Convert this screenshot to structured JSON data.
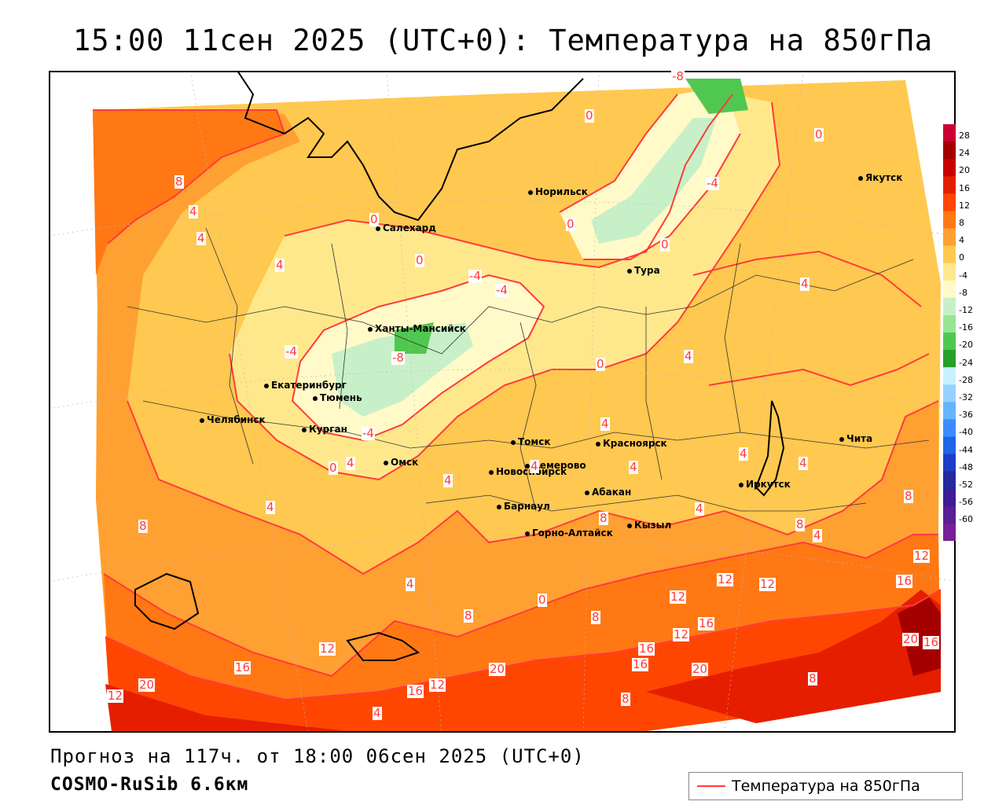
{
  "title": "15:00 11сен 2025 (UTC+0): Температура на 850гПа",
  "forecast_line": "Прогноз на 117ч. от 18:00 06сен 2025 (UTC+0)",
  "model_line": "COSMO-RuSib 6.6км",
  "legend": {
    "label": "Температура на 850гПа",
    "line_color": "#ff3b3b"
  },
  "colorbar": {
    "ticks": [
      "28",
      "24",
      "20",
      "16",
      "12",
      "8",
      "4",
      "0",
      "-4",
      "-8",
      "-12",
      "-16",
      "-20",
      "-24",
      "-28",
      "-32",
      "-36",
      "-40",
      "-44",
      "-48",
      "-52",
      "-56",
      "-60"
    ],
    "colors": [
      "#cc0033",
      "#a50000",
      "#c80000",
      "#e61e00",
      "#ff4600",
      "#ff7814",
      "#ffa032",
      "#ffc850",
      "#ffe88c",
      "#fffac8",
      "#c8f0c8",
      "#96e696",
      "#50c850",
      "#28a028",
      "#c8f0ff",
      "#96d2ff",
      "#64b4ff",
      "#3c8cff",
      "#1e64e6",
      "#1e3cc8",
      "#2828a0",
      "#3c1e96",
      "#5a1e96",
      "#781e96"
    ]
  },
  "cities": [
    {
      "name": "Якутск"
    },
    {
      "name": "Норильск"
    },
    {
      "name": "Салехард"
    },
    {
      "name": "Тура"
    },
    {
      "name": "Ханты-Мансийск"
    },
    {
      "name": "Екатеринбург"
    },
    {
      "name": "Тюмень"
    },
    {
      "name": "Челябинск"
    },
    {
      "name": "Курган"
    },
    {
      "name": "Омск"
    },
    {
      "name": "Томск"
    },
    {
      "name": "Красноярск"
    },
    {
      "name": "Новосибирск"
    },
    {
      "name": "Кемерово"
    },
    {
      "name": "Барнаул"
    },
    {
      "name": "Абакан"
    },
    {
      "name": "Горно-Алтайск"
    },
    {
      "name": "Кызыл"
    },
    {
      "name": "Иркутск"
    },
    {
      "name": "Чита"
    }
  ],
  "contour_labels": [
    "-8",
    "0",
    "0",
    "-4",
    "0",
    "0",
    "8",
    "4",
    "4",
    "4",
    "0",
    "0",
    "-4",
    "-4",
    "-4",
    "-8",
    "-4",
    "0",
    "4",
    "4",
    "0",
    "4",
    "4",
    "8",
    "4",
    "4",
    "4",
    "4",
    "4",
    "8",
    "8",
    "4",
    "8",
    "4",
    "4",
    "8",
    "8",
    "12",
    "16",
    "12",
    "12",
    "12",
    "16",
    "16",
    "12",
    "16",
    "20",
    "20",
    "16",
    "20",
    "16",
    "8",
    "8",
    "12",
    "12",
    "16",
    "20",
    "12",
    "4",
    "0",
    "4"
  ]
}
